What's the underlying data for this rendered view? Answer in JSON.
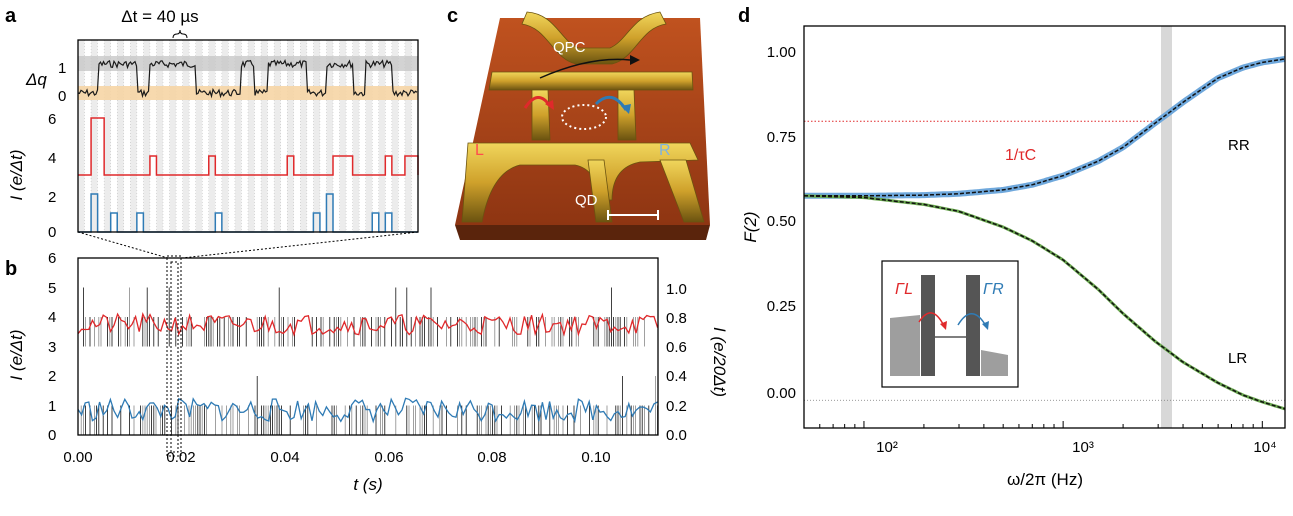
{
  "panels": {
    "a": {
      "letter": "a",
      "dt_label": "Δt = 40 µs",
      "dq_label": "Δq",
      "dq_ticks": [
        "1",
        "0"
      ],
      "ylabel": "I (e/Δt)",
      "y_ticks": [
        "6",
        "4",
        "2",
        "0"
      ]
    },
    "b": {
      "letter": "b",
      "ylabel_left": "I (e/Δt)",
      "ylabel_right": "I (e/20Δt)",
      "xlabel": "t (s)",
      "left_ticks": [
        "6",
        "5",
        "4",
        "3",
        "2",
        "1",
        "0"
      ],
      "right_ticks": [
        "1.0",
        "0.8",
        "0.6",
        "0.4",
        "0.2",
        "0.0"
      ],
      "x_ticks": [
        "0.00",
        "0.02",
        "0.04",
        "0.06",
        "0.08",
        "0.10"
      ]
    },
    "c": {
      "letter": "c",
      "labels": {
        "qpc": "QPC",
        "qd": "QD",
        "left": "L",
        "right": "R"
      }
    },
    "d": {
      "letter": "d",
      "ylabel": "F(2)",
      "xlabel": "ω/2π (Hz)",
      "y_ticks": [
        "1.00",
        "0.75",
        "0.50",
        "0.25",
        "0.00"
      ],
      "x_ticks": [
        "10²",
        "10³",
        "10⁴"
      ],
      "annotation": "1/τC",
      "curve_labels": [
        "RR",
        "LR"
      ],
      "inset_labels": [
        "ΓL",
        "ΓR"
      ]
    }
  },
  "chart_data": [
    {
      "panel": "a",
      "type": "line",
      "x_unit": "Δt bins",
      "series": [
        {
          "values": [
            0,
            0,
            0,
            0,
            0,
            0,
            0,
            0,
            0,
            0,
            0,
            0,
            0,
            0,
            0,
            0,
            0,
            0,
            0,
            0,
            0,
            0,
            0,
            0,
            0,
            0,
            0,
            0,
            0,
            0,
            0,
            0,
            0,
            0,
            0,
            0,
            0,
            0,
            0,
            0,
            0,
            0,
            0,
            0,
            0,
            0,
            0,
            0,
            0,
            0,
            0,
            0
          ]
        },
        {
          "values": [
            0,
            0,
            0,
            0,
            0,
            0,
            0,
            0,
            0,
            0,
            0,
            0,
            0,
            0,
            0,
            0,
            0,
            0,
            0,
            0,
            0,
            0,
            0,
            0,
            0,
            0,
            0,
            0,
            0,
            0,
            0,
            0,
            0,
            0,
            0,
            0,
            0,
            0,
            0,
            0,
            0,
            0,
            0,
            0,
            0,
            0,
            0,
            0,
            0,
            0,
            0,
            0
          ]
        }
      ],
      "red_steps": [
        [
          0,
          3
        ],
        [
          2,
          6
        ],
        [
          4,
          3
        ],
        [
          11,
          4
        ],
        [
          12,
          3
        ],
        [
          20,
          4
        ],
        [
          21,
          3
        ],
        [
          32,
          4
        ],
        [
          33,
          3
        ],
        [
          39,
          4
        ],
        [
          42,
          3
        ],
        [
          47,
          4
        ],
        [
          48,
          3
        ],
        [
          50,
          4
        ],
        [
          52,
          3
        ]
      ],
      "blue_steps": [
        [
          0,
          0
        ],
        [
          2,
          2
        ],
        [
          3,
          0
        ],
        [
          5,
          1
        ],
        [
          6,
          0
        ],
        [
          9,
          1
        ],
        [
          10,
          0
        ],
        [
          21,
          1
        ],
        [
          22,
          0
        ],
        [
          36,
          1
        ],
        [
          37,
          0
        ],
        [
          38,
          2
        ],
        [
          39,
          0
        ],
        [
          45,
          1
        ],
        [
          46,
          0
        ],
        [
          47,
          1
        ],
        [
          48,
          0
        ]
      ],
      "dq_levels": {
        "high": 1,
        "low": 0
      },
      "dq_transitions_at_bins": [
        3,
        9,
        11,
        18,
        25,
        27,
        29,
        35,
        38,
        42,
        44,
        48
      ],
      "ylim": [
        0,
        6.6
      ]
    },
    {
      "panel": "b",
      "type": "line",
      "x_unit": "s",
      "xlim": [
        0.0,
        0.112
      ],
      "left_ylim": [
        0,
        6
      ],
      "right_ylim": [
        0.0,
        1.2
      ],
      "red_series_right_axis_mean": 0.75,
      "blue_series_right_axis_mean": 0.17,
      "zoom_window": [
        0.017,
        0.02
      ]
    },
    {
      "panel": "d",
      "type": "line",
      "x_scale": "log",
      "xlim": [
        50,
        13000
      ],
      "ylim": [
        -0.08,
        1.08
      ],
      "vertical_marker_hz": 2900,
      "series": [
        {
          "name": "RR",
          "x": [
            50,
            100,
            200,
            300,
            500,
            700,
            1000,
            1500,
            2000,
            2900,
            4000,
            6000,
            8000,
            10000,
            13000
          ],
          "values": [
            0.59,
            0.59,
            0.592,
            0.596,
            0.607,
            0.622,
            0.648,
            0.69,
            0.73,
            0.8,
            0.86,
            0.93,
            0.96,
            0.975,
            0.985
          ]
        },
        {
          "name": "LR",
          "x": [
            50,
            100,
            200,
            300,
            500,
            700,
            1000,
            1500,
            2000,
            2900,
            4000,
            6000,
            8000,
            10000,
            13000
          ],
          "values": [
            0.59,
            0.585,
            0.565,
            0.545,
            0.5,
            0.46,
            0.405,
            0.32,
            0.25,
            0.17,
            0.11,
            0.05,
            0.015,
            -0.005,
            -0.025
          ]
        }
      ],
      "hline_red_y": 0.805,
      "hline_zero_y": 0.0
    }
  ],
  "colors": {
    "red": "#e0292b",
    "blue": "#2f7bb5",
    "black": "#1a1a1a",
    "gray_band": "#c8c8c8",
    "orange_band": "#f6d5a5",
    "green": "#6aa84f",
    "light_blue": "#6fa8dc",
    "afm_bg": "#a8421a",
    "afm_ridge": "#d4b135"
  }
}
